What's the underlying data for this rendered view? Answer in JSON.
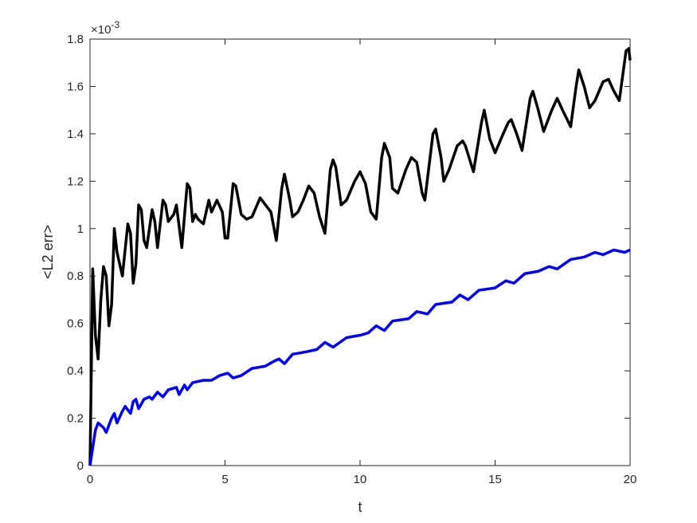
{
  "chart_data": {
    "type": "line",
    "xlabel": "t",
    "ylabel": "<L2 err>",
    "y_multiplier": {
      "base": "×10",
      "exponent": "-3"
    },
    "xlim": [
      0,
      20
    ],
    "xticks": [
      0,
      5,
      10,
      15,
      20
    ],
    "ylim": [
      0,
      1.8
    ],
    "yticks": [
      0,
      0.2,
      0.4,
      0.6,
      0.8,
      1,
      1.2,
      1.4,
      1.6,
      1.8
    ],
    "grid": false,
    "box": true,
    "series": [
      {
        "color": "#000000",
        "x": [
          0,
          0.1,
          0.2,
          0.3,
          0.4,
          0.5,
          0.6,
          0.7,
          0.8,
          0.9,
          1.0,
          1.2,
          1.4,
          1.5,
          1.6,
          1.7,
          1.8,
          1.9,
          2.0,
          2.1,
          2.3,
          2.4,
          2.5,
          2.7,
          2.8,
          2.9,
          3.1,
          3.2,
          3.4,
          3.6,
          3.7,
          3.8,
          3.9,
          4.0,
          4.2,
          4.4,
          4.5,
          4.7,
          4.9,
          5.0,
          5.1,
          5.3,
          5.4,
          5.6,
          5.8,
          6.0,
          6.3,
          6.5,
          6.7,
          6.9,
          7.1,
          7.2,
          7.4,
          7.5,
          7.7,
          7.9,
          8.1,
          8.3,
          8.5,
          8.7,
          8.9,
          9.0,
          9.1,
          9.3,
          9.5,
          9.8,
          10.0,
          10.2,
          10.4,
          10.6,
          10.8,
          10.9,
          11.1,
          11.2,
          11.4,
          11.7,
          11.9,
          12.1,
          12.3,
          12.4,
          12.7,
          12.8,
          13.0,
          13.1,
          13.3,
          13.6,
          13.8,
          13.9,
          14.2,
          14.5,
          14.6,
          14.8,
          15.0,
          15.3,
          15.5,
          15.6,
          15.8,
          16.0,
          16.3,
          16.4,
          16.6,
          16.8,
          17.1,
          17.3,
          17.5,
          17.8,
          18.0,
          18.1,
          18.3,
          18.5,
          18.7,
          19.0,
          19.2,
          19.4,
          19.6,
          19.85,
          19.95,
          20
        ],
        "values": [
          0,
          0.83,
          0.55,
          0.45,
          0.7,
          0.84,
          0.8,
          0.59,
          0.68,
          1.0,
          0.9,
          0.8,
          1.02,
          0.98,
          0.77,
          0.85,
          1.1,
          1.08,
          0.95,
          0.92,
          1.08,
          1.03,
          0.92,
          1.12,
          1.1,
          1.03,
          1.06,
          1.1,
          0.92,
          1.19,
          1.17,
          1.03,
          1.06,
          1.04,
          1.02,
          1.12,
          1.07,
          1.12,
          1.07,
          0.96,
          0.96,
          1.19,
          1.18,
          1.06,
          1.04,
          1.05,
          1.13,
          1.1,
          1.07,
          0.95,
          1.17,
          1.23,
          1.12,
          1.05,
          1.07,
          1.12,
          1.18,
          1.15,
          1.05,
          0.98,
          1.25,
          1.29,
          1.26,
          1.1,
          1.12,
          1.2,
          1.24,
          1.19,
          1.07,
          1.04,
          1.3,
          1.36,
          1.3,
          1.17,
          1.15,
          1.25,
          1.3,
          1.28,
          1.15,
          1.12,
          1.4,
          1.42,
          1.3,
          1.2,
          1.25,
          1.35,
          1.37,
          1.35,
          1.24,
          1.45,
          1.5,
          1.38,
          1.32,
          1.4,
          1.45,
          1.46,
          1.4,
          1.33,
          1.55,
          1.58,
          1.5,
          1.41,
          1.5,
          1.55,
          1.5,
          1.43,
          1.6,
          1.67,
          1.6,
          1.51,
          1.54,
          1.62,
          1.63,
          1.58,
          1.54,
          1.75,
          1.76,
          1.71
        ]
      },
      {
        "color": "#0000ff",
        "x": [
          0,
          0.2,
          0.3,
          0.5,
          0.6,
          0.8,
          0.9,
          1.0,
          1.2,
          1.3,
          1.5,
          1.6,
          1.7,
          1.8,
          2.0,
          2.2,
          2.3,
          2.5,
          2.7,
          2.9,
          3.2,
          3.3,
          3.5,
          3.6,
          3.8,
          4.2,
          4.5,
          4.8,
          5.1,
          5.3,
          5.6,
          6.0,
          6.5,
          6.8,
          7.0,
          7.2,
          7.5,
          8.0,
          8.4,
          8.7,
          9.0,
          9.5,
          10.0,
          10.3,
          10.6,
          10.9,
          11.2,
          11.8,
          12.1,
          12.5,
          12.8,
          13.4,
          13.7,
          14.0,
          14.4,
          15.0,
          15.4,
          15.7,
          16.1,
          16.6,
          17.0,
          17.3,
          17.8,
          18.3,
          18.7,
          19.0,
          19.4,
          19.8,
          20
        ],
        "values": [
          0,
          0.15,
          0.18,
          0.16,
          0.14,
          0.2,
          0.22,
          0.18,
          0.23,
          0.25,
          0.22,
          0.27,
          0.28,
          0.24,
          0.28,
          0.29,
          0.28,
          0.31,
          0.29,
          0.32,
          0.33,
          0.3,
          0.34,
          0.32,
          0.35,
          0.36,
          0.36,
          0.38,
          0.39,
          0.37,
          0.38,
          0.41,
          0.42,
          0.44,
          0.45,
          0.43,
          0.47,
          0.48,
          0.49,
          0.52,
          0.5,
          0.54,
          0.55,
          0.56,
          0.59,
          0.57,
          0.61,
          0.62,
          0.65,
          0.64,
          0.68,
          0.69,
          0.72,
          0.7,
          0.74,
          0.75,
          0.78,
          0.77,
          0.81,
          0.82,
          0.84,
          0.83,
          0.87,
          0.88,
          0.9,
          0.89,
          0.91,
          0.9,
          0.91
        ]
      }
    ]
  }
}
